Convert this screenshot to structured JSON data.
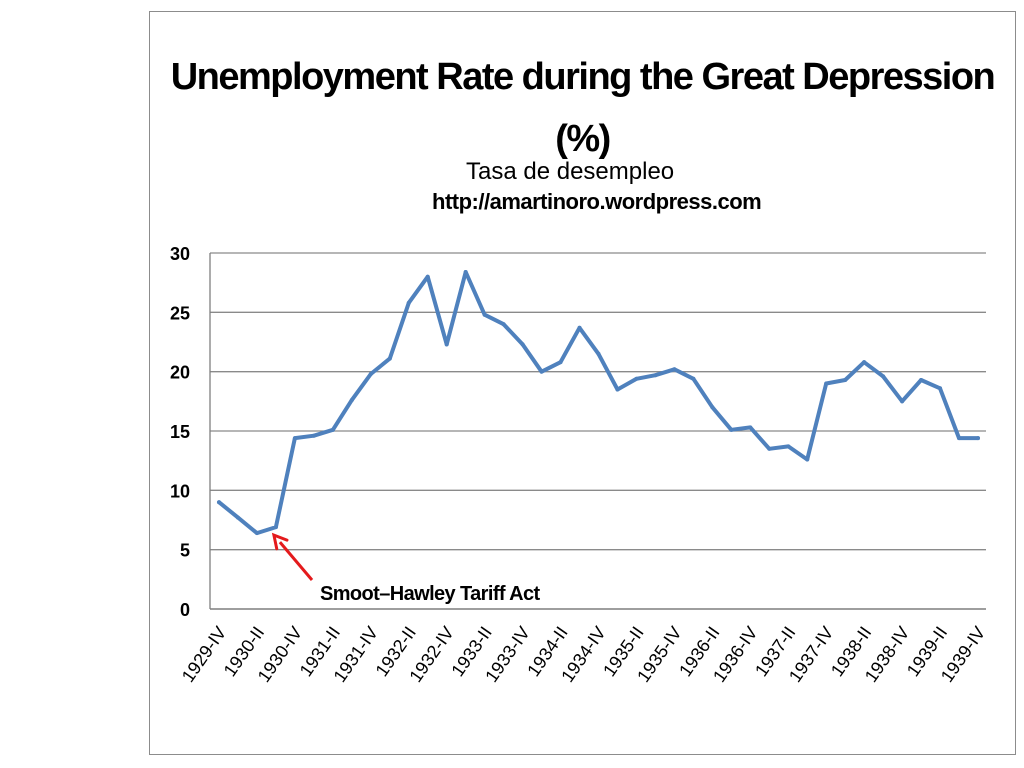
{
  "chart_data": {
    "type": "line",
    "title": "Unemployment Rate during the Great Depression (%)",
    "subtitle": "Tasa de desempleo",
    "source": "http://amartinoro.wordpress.com",
    "xlabel": "",
    "ylabel": "",
    "ylim": [
      0,
      30
    ],
    "yticks": [
      0,
      5,
      10,
      15,
      20,
      25,
      30
    ],
    "grid": true,
    "legend": "none",
    "tick_labels": [
      "1929-IV",
      "1930-II",
      "1930-IV",
      "1931-II",
      "1931-IV",
      "1932-II",
      "1932-IV",
      "1933-II",
      "1933-IV",
      "1934-II",
      "1934-IV",
      "1935-II",
      "1935-IV",
      "1936-II",
      "1936-IV",
      "1937-II",
      "1937-IV",
      "1938-II",
      "1938-IV",
      "1939-II",
      "1939-IV"
    ],
    "categories": [
      "1929-IV",
      "1930-I",
      "1930-II",
      "1930-III",
      "1930-IV",
      "1931-I",
      "1931-II",
      "1931-III",
      "1931-IV",
      "1932-I",
      "1932-II",
      "1932-III",
      "1932-IV",
      "1933-I",
      "1933-II",
      "1933-III",
      "1933-IV",
      "1934-I",
      "1934-II",
      "1934-III",
      "1934-IV",
      "1935-I",
      "1935-II",
      "1935-III",
      "1935-IV",
      "1936-I",
      "1936-II",
      "1936-III",
      "1936-IV",
      "1937-I",
      "1937-II",
      "1937-III",
      "1937-IV",
      "1938-I",
      "1938-II",
      "1938-III",
      "1938-IV",
      "1939-I",
      "1939-II",
      "1939-III",
      "1939-IV"
    ],
    "series": [
      {
        "color": "#4f81bd",
        "values": [
          9.0,
          7.7,
          6.4,
          6.9,
          14.4,
          14.6,
          15.1,
          17.6,
          19.8,
          21.1,
          25.8,
          28.0,
          22.3,
          28.4,
          24.8,
          24.0,
          22.3,
          20.0,
          20.8,
          23.7,
          21.5,
          18.5,
          19.4,
          19.7,
          20.2,
          19.4,
          17.0,
          15.1,
          15.3,
          13.5,
          13.7,
          12.6,
          19.0,
          19.3,
          20.8,
          19.6,
          17.5,
          19.3,
          18.6,
          14.4,
          14.4
        ]
      }
    ],
    "annotation": {
      "text": "Smoot–Hawley Tariff Act",
      "target": "1930-III",
      "arrow_color": "#e41a1c"
    }
  }
}
